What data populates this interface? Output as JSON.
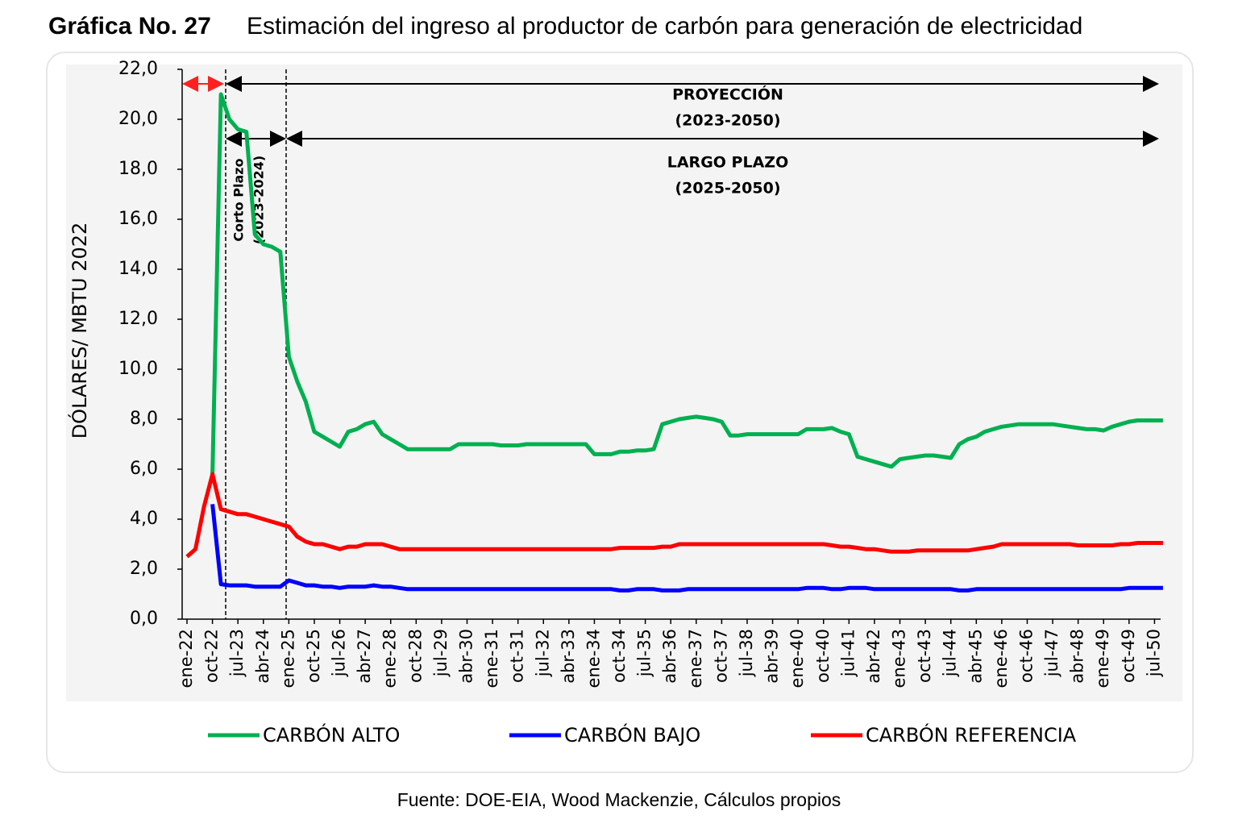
{
  "chart_data": {
    "type": "line",
    "title_number": "Gráfica No. 27",
    "title": "Estimación del ingreso al productor de carbón para generación de electricidad",
    "ylabel": "DÓLARES/ MBTU 2022",
    "source": "Fuente: DOE-EIA, Wood Mackenzie, Cálculos propios",
    "annotations": [
      "PROYECCIÓN",
      "(2023-2050)",
      "LARGO PLAZO",
      "(2025-2050)",
      "Corto Plazo",
      "(2023-2024)"
    ],
    "categories": [
      "ene-22",
      null,
      null,
      "oct-22",
      null,
      null,
      "jul-23",
      null,
      null,
      "abr-24",
      null,
      null,
      "ene-25",
      null,
      null,
      "oct-25",
      null,
      null,
      "jul-26",
      null,
      null,
      "abr-27",
      null,
      null,
      "ene-28",
      null,
      null,
      "oct-28",
      null,
      null,
      "jul-29",
      null,
      null,
      "abr-30",
      null,
      null,
      "ene-31",
      null,
      null,
      "oct-31",
      null,
      null,
      "jul-32",
      null,
      null,
      "abr-33",
      null,
      null,
      "ene-34",
      null,
      null,
      "oct-34",
      null,
      null,
      "jul-35",
      null,
      null,
      "abr-36",
      null,
      null,
      "ene-37",
      null,
      null,
      "oct-37",
      null,
      null,
      "jul-38",
      null,
      null,
      "abr-39",
      null,
      null,
      "ene-40",
      null,
      null,
      "oct-40",
      null,
      null,
      "jul-41",
      null,
      null,
      "abr-42",
      null,
      null,
      "ene-43",
      null,
      null,
      "oct-43",
      null,
      null,
      "jul-44",
      null,
      null,
      "abr-45",
      null,
      null,
      "ene-46",
      null,
      null,
      "oct-46",
      null,
      null,
      "jul-47",
      null,
      null,
      "abr-48",
      null,
      null,
      "ene-49",
      null,
      null,
      "oct-49",
      null,
      null,
      "jul-50",
      null
    ],
    "series": [
      {
        "name": "CARBÓN ALTO",
        "color": "#00b050",
        "values": [
          null,
          null,
          null,
          5.8,
          21.0,
          20.0,
          19.6,
          19.5,
          15.4,
          15.0,
          14.9,
          14.7,
          10.5,
          9.5,
          8.7,
          7.5,
          7.3,
          7.1,
          6.9,
          7.5,
          7.6,
          7.8,
          7.9,
          7.4,
          7.2,
          7.0,
          6.8,
          6.8,
          6.8,
          6.8,
          6.8,
          6.8,
          7.0,
          7.0,
          7.0,
          7.0,
          7.0,
          6.95,
          6.95,
          6.95,
          7.0,
          7.0,
          7.0,
          7.0,
          7.0,
          7.0,
          7.0,
          7.0,
          6.6,
          6.6,
          6.6,
          6.7,
          6.7,
          6.75,
          6.75,
          6.8,
          7.8,
          7.9,
          8.0,
          8.05,
          8.1,
          8.05,
          8.0,
          7.9,
          7.35,
          7.35,
          7.4,
          7.4,
          7.4,
          7.4,
          7.4,
          7.4,
          7.4,
          7.6,
          7.6,
          7.6,
          7.65,
          7.5,
          7.4,
          6.5,
          6.4,
          6.3,
          6.2,
          6.1,
          6.4,
          6.45,
          6.5,
          6.55,
          6.55,
          6.5,
          6.45,
          7.0,
          7.2,
          7.3,
          7.5,
          7.6,
          7.7,
          7.75,
          7.8,
          7.8,
          7.8,
          7.8,
          7.8,
          7.75,
          7.7,
          7.65,
          7.6,
          7.6,
          7.55,
          7.7,
          7.8,
          7.9,
          7.95,
          7.95,
          7.95,
          7.95
        ]
      },
      {
        "name": "CARBÓN BAJO",
        "color": "#0000ff",
        "values": [
          null,
          null,
          null,
          4.6,
          1.4,
          1.35,
          1.35,
          1.35,
          1.3,
          1.3,
          1.3,
          1.3,
          1.55,
          1.45,
          1.35,
          1.35,
          1.3,
          1.3,
          1.25,
          1.3,
          1.3,
          1.3,
          1.35,
          1.3,
          1.3,
          1.25,
          1.2,
          1.2,
          1.2,
          1.2,
          1.2,
          1.2,
          1.2,
          1.2,
          1.2,
          1.2,
          1.2,
          1.2,
          1.2,
          1.2,
          1.2,
          1.2,
          1.2,
          1.2,
          1.2,
          1.2,
          1.2,
          1.2,
          1.2,
          1.2,
          1.2,
          1.15,
          1.15,
          1.2,
          1.2,
          1.2,
          1.15,
          1.15,
          1.15,
          1.2,
          1.2,
          1.2,
          1.2,
          1.2,
          1.2,
          1.2,
          1.2,
          1.2,
          1.2,
          1.2,
          1.2,
          1.2,
          1.2,
          1.25,
          1.25,
          1.25,
          1.2,
          1.2,
          1.25,
          1.25,
          1.25,
          1.2,
          1.2,
          1.2,
          1.2,
          1.2,
          1.2,
          1.2,
          1.2,
          1.2,
          1.2,
          1.15,
          1.15,
          1.2,
          1.2,
          1.2,
          1.2,
          1.2,
          1.2,
          1.2,
          1.2,
          1.2,
          1.2,
          1.2,
          1.2,
          1.2,
          1.2,
          1.2,
          1.2,
          1.2,
          1.2,
          1.25,
          1.25,
          1.25,
          1.25,
          1.25
        ]
      },
      {
        "name": "CARBÓN REFERENCIA",
        "color": "#ff0000",
        "values": [
          2.5,
          2.8,
          4.5,
          5.8,
          4.4,
          4.3,
          4.2,
          4.2,
          4.1,
          4.0,
          3.9,
          3.8,
          3.7,
          3.3,
          3.1,
          3.0,
          3.0,
          2.9,
          2.8,
          2.9,
          2.9,
          3.0,
          3.0,
          3.0,
          2.9,
          2.8,
          2.8,
          2.8,
          2.8,
          2.8,
          2.8,
          2.8,
          2.8,
          2.8,
          2.8,
          2.8,
          2.8,
          2.8,
          2.8,
          2.8,
          2.8,
          2.8,
          2.8,
          2.8,
          2.8,
          2.8,
          2.8,
          2.8,
          2.8,
          2.8,
          2.8,
          2.85,
          2.85,
          2.85,
          2.85,
          2.85,
          2.9,
          2.9,
          3.0,
          3.0,
          3.0,
          3.0,
          3.0,
          3.0,
          3.0,
          3.0,
          3.0,
          3.0,
          3.0,
          3.0,
          3.0,
          3.0,
          3.0,
          3.0,
          3.0,
          3.0,
          2.95,
          2.9,
          2.9,
          2.85,
          2.8,
          2.8,
          2.75,
          2.7,
          2.7,
          2.7,
          2.75,
          2.75,
          2.75,
          2.75,
          2.75,
          2.75,
          2.75,
          2.8,
          2.85,
          2.9,
          3.0,
          3.0,
          3.0,
          3.0,
          3.0,
          3.0,
          3.0,
          3.0,
          3.0,
          2.95,
          2.95,
          2.95,
          2.95,
          2.95,
          3.0,
          3.0,
          3.05,
          3.05,
          3.05,
          3.05
        ]
      }
    ],
    "ylim": [
      0,
      22
    ],
    "yticks": [
      {
        "value": 0,
        "label": "0,0"
      },
      {
        "value": 2,
        "label": "2,0"
      },
      {
        "value": 4,
        "label": "4,0"
      },
      {
        "value": 6,
        "label": "6,0"
      },
      {
        "value": 8,
        "label": "8,0"
      },
      {
        "value": 10,
        "label": "10,0"
      },
      {
        "value": 12,
        "label": "12,0"
      },
      {
        "value": 14,
        "label": "14,0"
      },
      {
        "value": 16,
        "label": "16,0"
      },
      {
        "value": 18,
        "label": "18,0"
      },
      {
        "value": 20,
        "label": "20,0"
      },
      {
        "value": 22,
        "label": "22,0"
      }
    ],
    "grid": false
  }
}
